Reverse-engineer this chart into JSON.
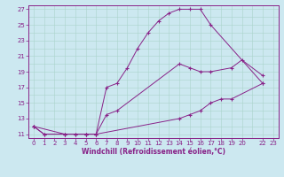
{
  "xlabel": "Windchill (Refroidissement éolien,°C)",
  "background_color": "#cce8f0",
  "grid_color": "#aad4cc",
  "line_color": "#882288",
  "xlim": [
    -0.5,
    23.5
  ],
  "ylim": [
    10.5,
    27.5
  ],
  "xticks": [
    0,
    1,
    2,
    3,
    4,
    5,
    6,
    7,
    8,
    9,
    10,
    11,
    12,
    13,
    14,
    15,
    16,
    17,
    18,
    19,
    20,
    22,
    23
  ],
  "yticks": [
    11,
    13,
    15,
    17,
    19,
    21,
    23,
    25,
    27
  ],
  "line1_x": [
    0,
    1,
    3,
    4,
    5,
    6,
    7,
    8,
    9,
    10,
    11,
    12,
    13,
    14,
    15,
    16,
    17,
    22
  ],
  "line1_y": [
    12,
    11,
    11,
    11,
    11,
    11,
    17,
    17.5,
    19.5,
    22,
    24,
    25.5,
    26.5,
    27,
    27,
    27,
    25,
    17.5
  ],
  "line2_x": [
    0,
    3,
    4,
    5,
    6,
    7,
    8,
    14,
    15,
    16,
    17,
    19,
    20,
    22
  ],
  "line2_y": [
    12,
    11,
    11,
    11,
    11,
    13.5,
    14,
    20,
    19.5,
    19,
    19,
    19.5,
    20.5,
    18.5
  ],
  "line3_x": [
    0,
    1,
    3,
    5,
    6,
    14,
    15,
    16,
    17,
    18,
    19,
    22
  ],
  "line3_y": [
    12,
    11,
    11,
    11,
    11,
    13,
    13.5,
    14,
    15,
    15.5,
    15.5,
    17.5
  ],
  "tick_fontsize": 5,
  "label_fontsize": 5.5
}
